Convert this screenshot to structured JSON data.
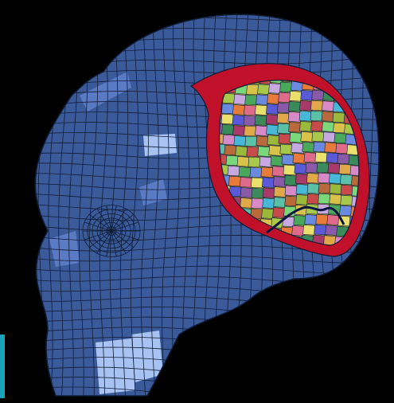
{
  "scene": {
    "subject": "",
    "colors": {
      "background": "#000000",
      "skull_fill": "#3b5a9a",
      "skull_light": "#a8c2f2",
      "skull_mid": "#5a7bc4",
      "mesh_line": "#0f1c36",
      "shell_red": "#c0102a",
      "edge_strip": "#1aa3b8",
      "sulcus_line": "#0a1440"
    },
    "brain_palette": [
      "#d8c24a",
      "#4aa85a",
      "#e06a8a",
      "#8a5aa8",
      "#e0a848",
      "#5ac0a8",
      "#c84a4a",
      "#a8c84a",
      "#6a8ae0",
      "#e8e06a",
      "#3a8a5a",
      "#d88ac8",
      "#b86a3a",
      "#7ad87a",
      "#c8a8e0",
      "#e87a3a",
      "#5a5ad8",
      "#a83a6a",
      "#48b8d8",
      "#9ab83a"
    ]
  }
}
